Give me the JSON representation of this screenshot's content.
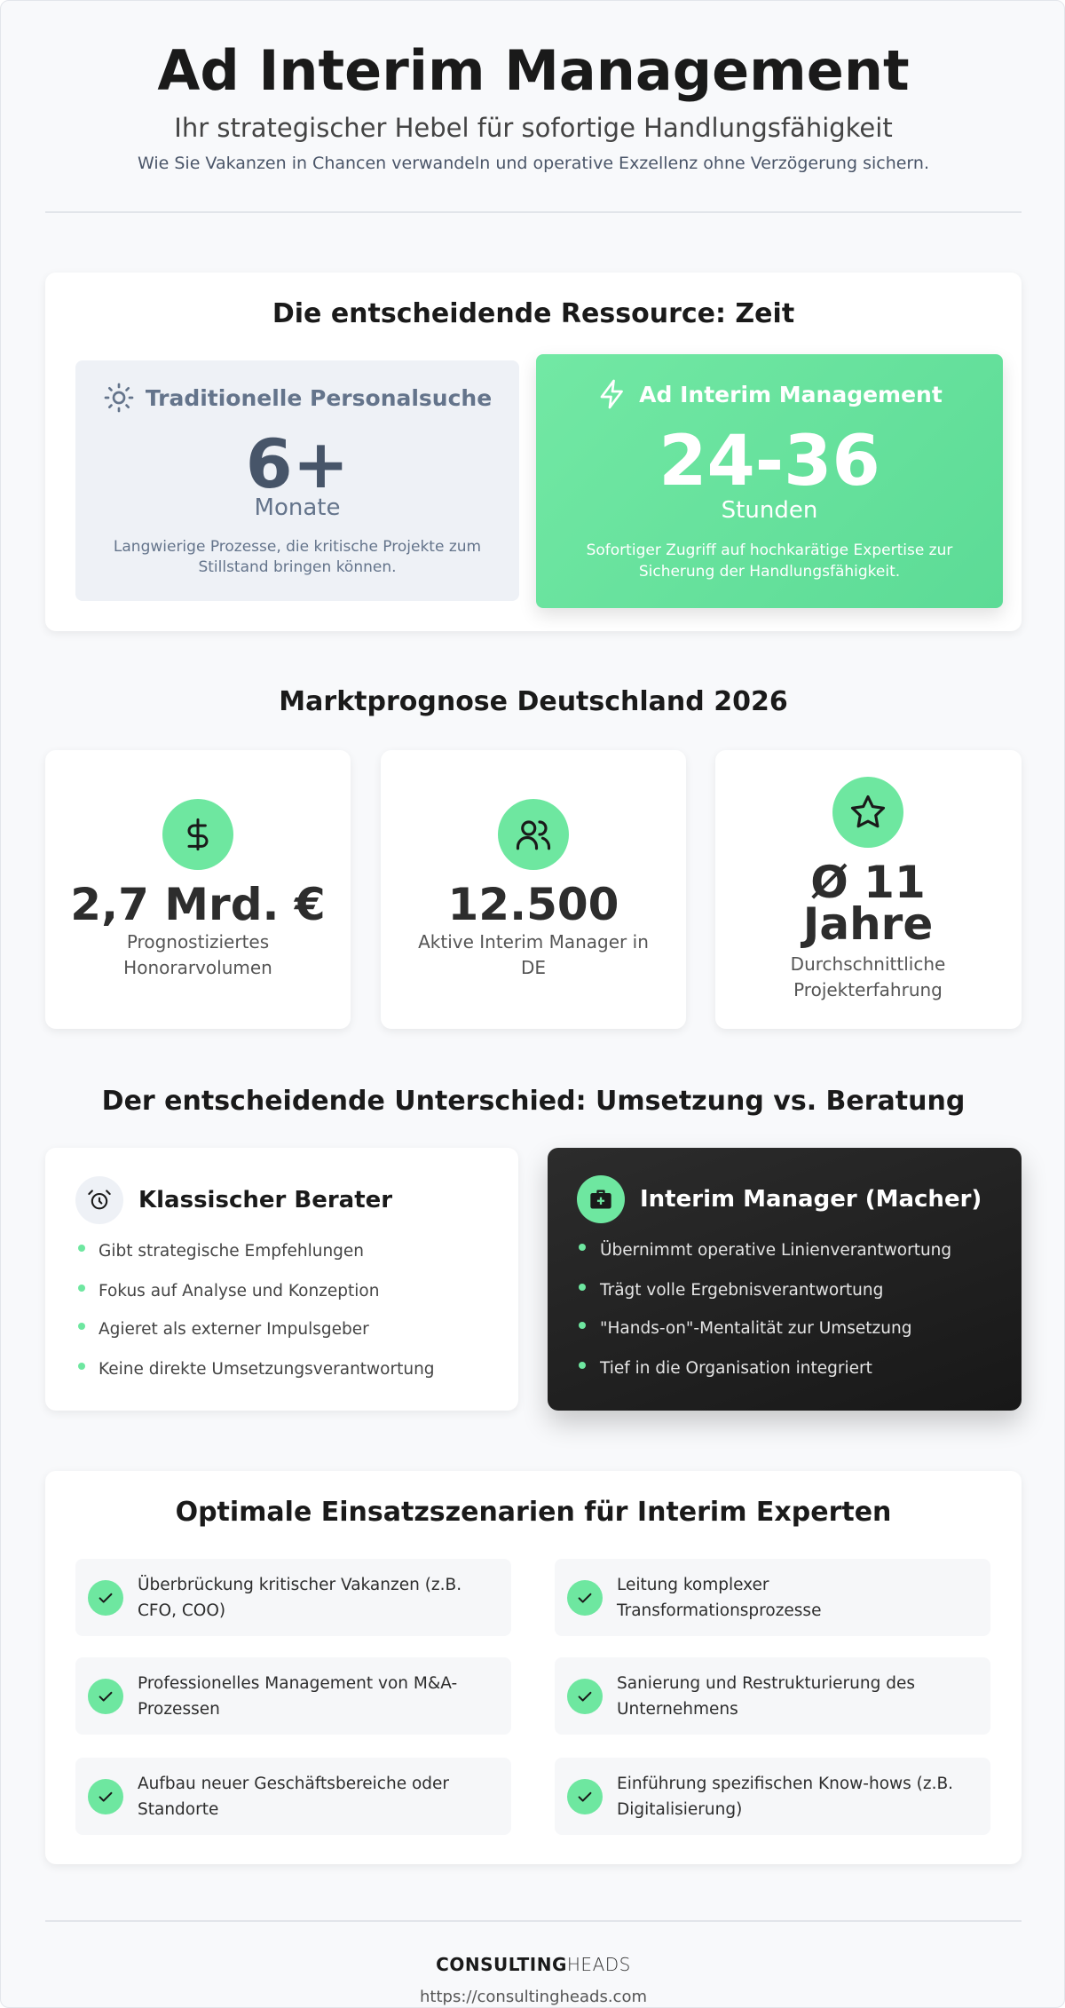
{
  "header": {
    "title": "Ad Interim Management",
    "subtitle": "Ihr strategischer Hebel für sofortige Handlungsfähigkeit",
    "tagline": "Wie Sie Vakanzen in Chancen verwandeln und operative Exzellenz ohne Verzögerung sichern."
  },
  "time_section": {
    "title": "Die entscheidende Ressource: Zeit",
    "traditional": {
      "title": "Traditionelle Personalsuche",
      "value": "6+",
      "unit": "Monate",
      "description": "Langwierige Prozesse, die kritische Projekte zum Stillstand bringen können."
    },
    "interim": {
      "title": "Ad Interim Management",
      "value": "24-36",
      "unit": "Stunden",
      "description": "Sofortiger Zugriff auf hochkarätige Expertise zur Sicherung der Handlungsfähigkeit."
    }
  },
  "market_section": {
    "title": "Marktprognose Deutschland 2026",
    "stats": [
      {
        "value": "2,7 Mrd. €",
        "label": "Prognostiziertes Honorarvolumen"
      },
      {
        "value": "12.500",
        "label": "Aktive Interim Manager in DE"
      },
      {
        "value": "Ø 11 Jahre",
        "label": "Durchschnittliche Projekterfahrung"
      }
    ]
  },
  "difference_section": {
    "title": "Der entscheidende Unterschied: Umsetzung vs. Beratung",
    "consultant": {
      "title": "Klassischer Berater",
      "points": [
        "Gibt strategische Empfehlungen",
        "Fokus auf Analyse und Konzeption",
        "Agieret als externer Impulsgeber",
        "Keine direkte Umsetzungsverantwortung"
      ]
    },
    "manager": {
      "title": "Interim Manager (Macher)",
      "points": [
        "Übernimmt operative Linienverantwortung",
        "Trägt volle Ergebnisverantwortung",
        "\"Hands-on\"-Mentalität zur Umsetzung",
        "Tief in die Organisation integriert"
      ]
    }
  },
  "scenarios_section": {
    "title": "Optimale Einsatzszenarien für Interim Experten",
    "items": [
      "Überbrückung kritischer Vakanzen (z.B. CFO, COO)",
      "Leitung komplexer Transformationsprozesse",
      "Professionelles Management von M&A-Prozessen",
      "Sanierung und Restrukturierung des Unternehmens",
      "Aufbau neuer Geschäftsbereiche oder Standorte",
      "Einführung spezifischen Know-hows (z.B. Digitalisierung)"
    ]
  },
  "footer": {
    "brand_bold": "CONSULTING",
    "brand_light": "HEADS",
    "url": "https://consultingheads.com"
  }
}
